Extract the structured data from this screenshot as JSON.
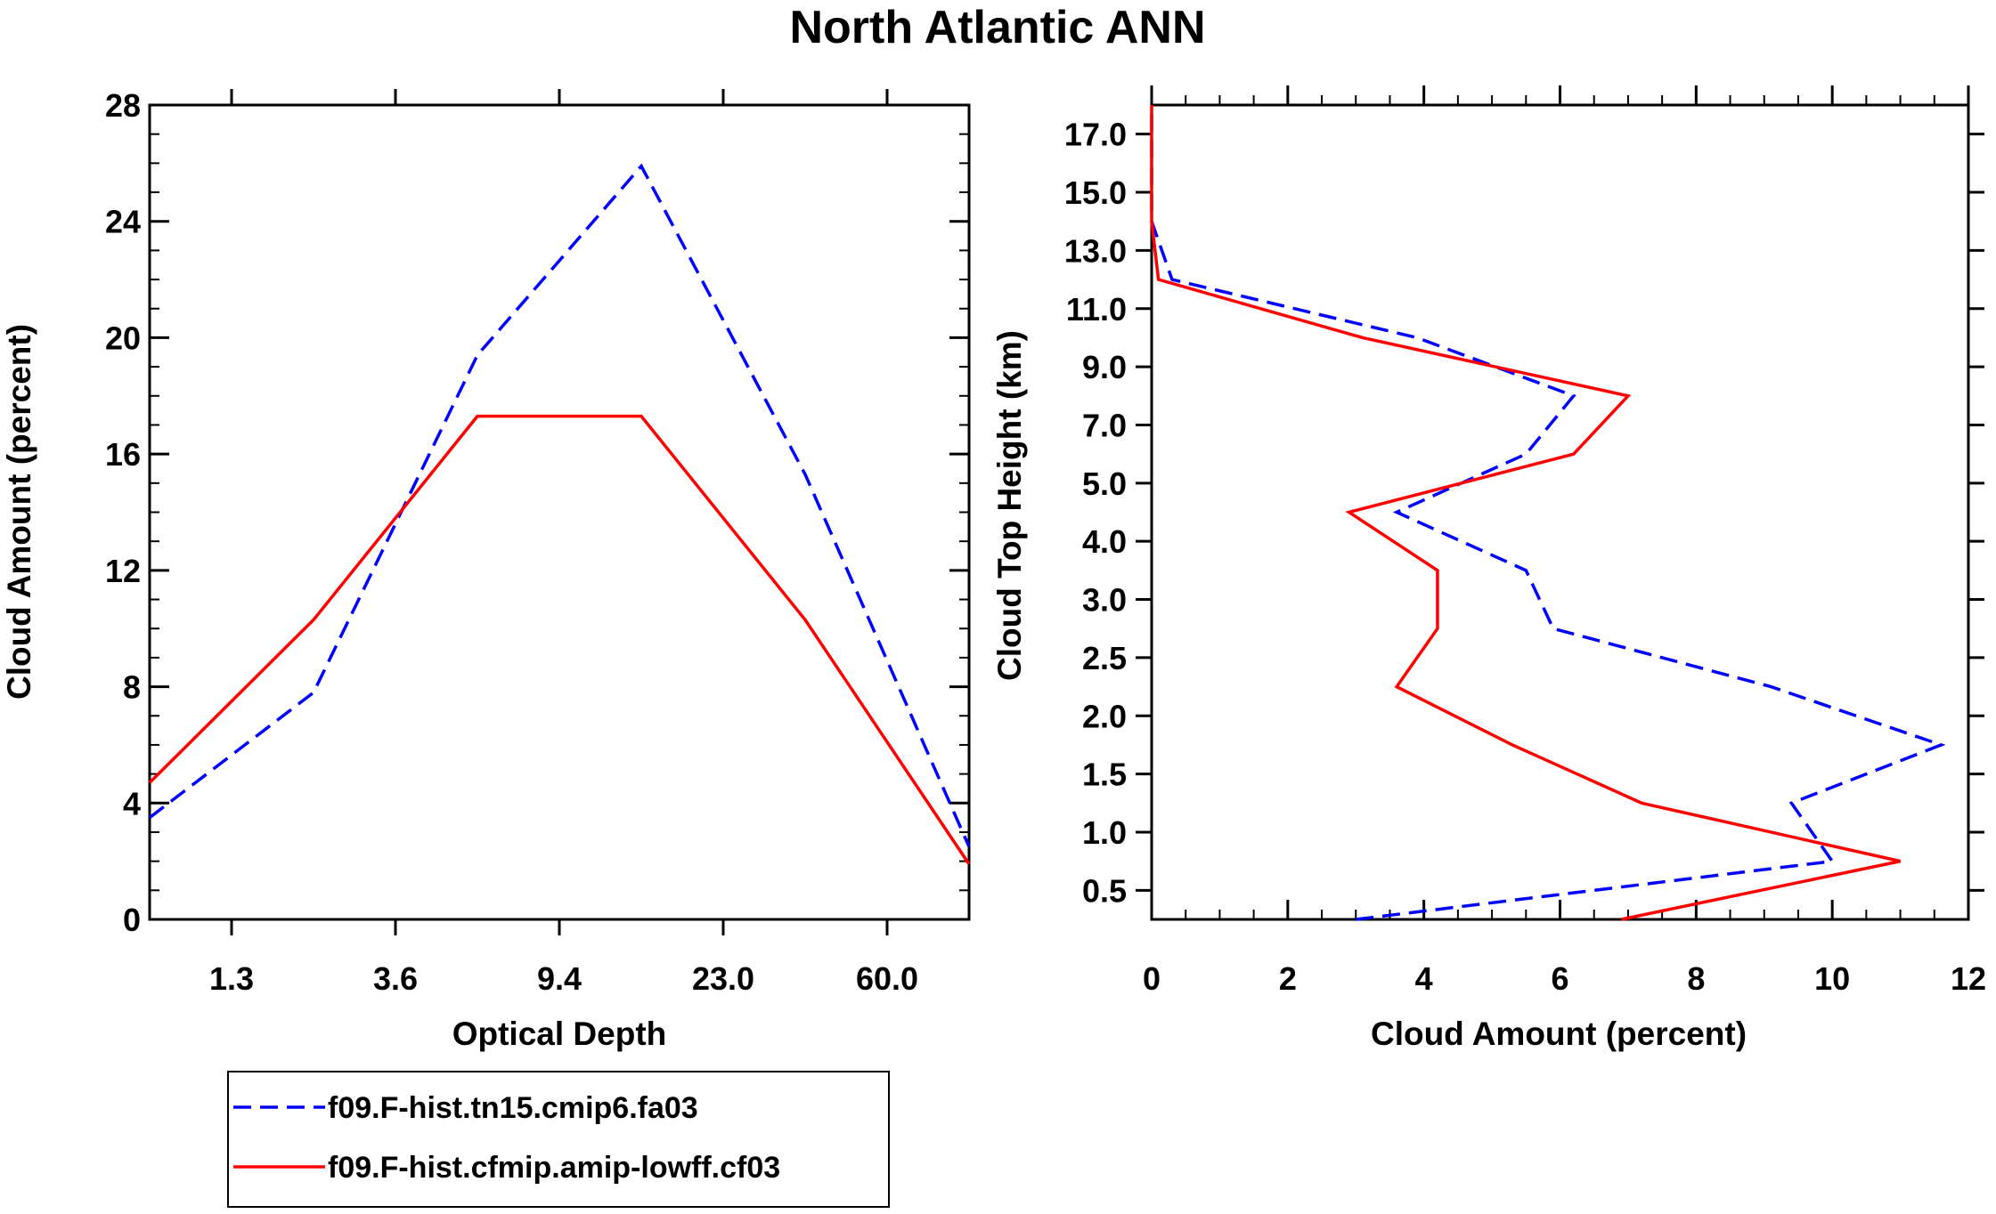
{
  "title": "North Atlantic ANN",
  "colors": {
    "blue": "#0000ff",
    "red": "#ff0000",
    "axis": "#000000"
  },
  "legend": {
    "entries": [
      {
        "label": "f09.F-hist.tn15.cmip6.fa03",
        "color": "#0000ff",
        "style": "dashed"
      },
      {
        "label": "f09.F-hist.cfmip.amip-lowff.cf03",
        "color": "#ff0000",
        "style": "solid"
      }
    ]
  },
  "chart_data": [
    {
      "type": "line",
      "xlabel": "Optical Depth",
      "ylabel": "Cloud Amount (percent)",
      "x_tick_labels": [
        "1.3",
        "3.6",
        "9.4",
        "23.0",
        "60.0"
      ],
      "x_index_range": [
        0,
        5
      ],
      "ylim": [
        0,
        28
      ],
      "y_ticks": [
        0,
        4,
        8,
        12,
        16,
        20,
        24,
        28
      ],
      "x_positions": [
        0,
        1,
        2,
        3,
        4,
        5
      ],
      "series": [
        {
          "name": "f09.F-hist.tn15.cmip6.fa03",
          "values": [
            3.5,
            7.8,
            19.4,
            25.9,
            15.3,
            2.5
          ]
        },
        {
          "name": "f09.F-hist.cfmip.amip-lowff.cf03",
          "values": [
            4.7,
            10.3,
            17.3,
            17.3,
            10.3,
            1.9
          ]
        }
      ]
    },
    {
      "type": "line",
      "orientation": "vertical-profile",
      "xlabel": "Cloud Amount (percent)",
      "ylabel": "Cloud Top Height (km)",
      "xlim": [
        0,
        12
      ],
      "x_ticks": [
        0,
        2,
        4,
        6,
        8,
        10,
        12
      ],
      "y_tick_labels": [
        "0.5",
        "1.0",
        "1.5",
        "2.0",
        "2.5",
        "3.0",
        "4.0",
        "5.0",
        "7.0",
        "9.0",
        "11.0",
        "13.0",
        "15.0",
        "17.0"
      ],
      "y_index_range": [
        0,
        14
      ],
      "levels": [
        0,
        1,
        2,
        3,
        4,
        5,
        6,
        7,
        8,
        9,
        10,
        11,
        12,
        13,
        14
      ],
      "series": [
        {
          "name": "f09.F-hist.tn15.cmip6.fa03",
          "values": [
            3.0,
            10.0,
            9.4,
            11.6,
            9.1,
            5.9,
            5.5,
            3.6,
            5.5,
            6.2,
            3.9,
            0.3,
            0.0,
            0.0,
            0.0
          ]
        },
        {
          "name": "f09.F-hist.cfmip.amip-lowff.cf03",
          "values": [
            6.9,
            11.0,
            7.2,
            5.3,
            3.6,
            4.2,
            4.2,
            2.9,
            6.2,
            7.0,
            3.1,
            0.1,
            0.0,
            0.0,
            0.0
          ]
        }
      ]
    }
  ]
}
